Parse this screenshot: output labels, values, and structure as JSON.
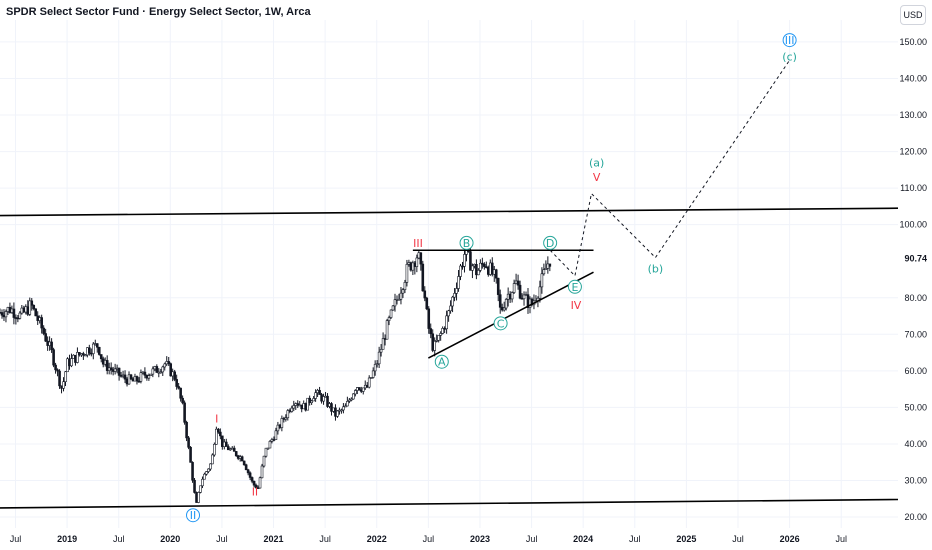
{
  "header": {
    "title": "SPDR Select Sector Fund · Energy Select Sector, 1W, Arca",
    "currency": "USD"
  },
  "chart_data": {
    "type": "candlestick",
    "title": "SPDR Select Sector Fund · Energy Select Sector, 1W, Arca",
    "y_axis_ticks": [
      20,
      30,
      40,
      50,
      60,
      70,
      80,
      90.74,
      100,
      110,
      120,
      130,
      140,
      150
    ],
    "y_axis_labels": [
      "20.00",
      "30.00",
      "40.00",
      "50.00",
      "60.00",
      "70.00",
      "80.00",
      "90.74",
      "100.00",
      "110.00",
      "120.00",
      "130.00",
      "140.00",
      "150.00"
    ],
    "current_price": "90.74",
    "x_axis_labels": [
      "Jul",
      "2019",
      "Jul",
      "2020",
      "Jul",
      "2021",
      "Jul",
      "2022",
      "Jul",
      "2023",
      "Jul",
      "2024",
      "Jul",
      "2025",
      "Jul",
      "2026",
      "Jul"
    ],
    "x_axis_positions": [
      2018.5,
      2019,
      2019.5,
      2020,
      2020.5,
      2021,
      2021.5,
      2022,
      2022.5,
      2023,
      2023.5,
      2024,
      2024.5,
      2025,
      2025.5,
      2026,
      2026.5
    ],
    "ylim": [
      17,
      156
    ],
    "xlim": [
      2018.35,
      2027.05
    ],
    "price_path": [
      [
        2018.35,
        76
      ],
      [
        2018.45,
        77
      ],
      [
        2018.55,
        75
      ],
      [
        2018.65,
        78
      ],
      [
        2018.75,
        72
      ],
      [
        2018.85,
        65
      ],
      [
        2018.95,
        55
      ],
      [
        2019.0,
        62
      ],
      [
        2019.1,
        64
      ],
      [
        2019.2,
        66
      ],
      [
        2019.3,
        67
      ],
      [
        2019.35,
        62
      ],
      [
        2019.45,
        60
      ],
      [
        2019.55,
        58
      ],
      [
        2019.65,
        57
      ],
      [
        2019.75,
        59
      ],
      [
        2019.85,
        60
      ],
      [
        2019.95,
        62
      ],
      [
        2020.05,
        58
      ],
      [
        2020.12,
        50
      ],
      [
        2020.2,
        34
      ],
      [
        2020.25,
        23
      ],
      [
        2020.3,
        30
      ],
      [
        2020.4,
        35
      ],
      [
        2020.45,
        46
      ],
      [
        2020.5,
        40
      ],
      [
        2020.6,
        38
      ],
      [
        2020.7,
        36
      ],
      [
        2020.8,
        29
      ],
      [
        2020.85,
        28
      ],
      [
        2020.92,
        38
      ],
      [
        2021.0,
        42
      ],
      [
        2021.1,
        47
      ],
      [
        2021.2,
        52
      ],
      [
        2021.3,
        50
      ],
      [
        2021.4,
        54
      ],
      [
        2021.5,
        52
      ],
      [
        2021.6,
        48
      ],
      [
        2021.7,
        50
      ],
      [
        2021.8,
        56
      ],
      [
        2021.9,
        55
      ],
      [
        2022.0,
        62
      ],
      [
        2022.1,
        72
      ],
      [
        2022.2,
        80
      ],
      [
        2022.3,
        88
      ],
      [
        2022.4,
        92
      ],
      [
        2022.45,
        83
      ],
      [
        2022.5,
        72
      ],
      [
        2022.55,
        66
      ],
      [
        2022.62,
        70
      ],
      [
        2022.7,
        76
      ],
      [
        2022.78,
        85
      ],
      [
        2022.85,
        92
      ],
      [
        2022.9,
        90
      ],
      [
        2022.97,
        87
      ],
      [
        2023.05,
        90
      ],
      [
        2023.15,
        85
      ],
      [
        2023.2,
        76
      ],
      [
        2023.25,
        80
      ],
      [
        2023.35,
        84
      ],
      [
        2023.42,
        80
      ],
      [
        2023.5,
        78
      ],
      [
        2023.58,
        83
      ],
      [
        2023.65,
        89
      ],
      [
        2023.68,
        90.7
      ]
    ],
    "annotations": [
      {
        "label": "I",
        "x": 2020.45,
        "y": 47,
        "color": "#f23645",
        "style": "plain"
      },
      {
        "label": "II",
        "x": 2020.22,
        "y": 20.5,
        "color": "#2196f3",
        "style": "circled"
      },
      {
        "label": "II",
        "x": 2020.82,
        "y": 27,
        "color": "#f23645",
        "style": "plain"
      },
      {
        "label": "III",
        "x": 2022.4,
        "y": 95,
        "color": "#f23645",
        "style": "plain"
      },
      {
        "label": "A",
        "x": 2022.63,
        "y": 62.5,
        "color": "#26a69a",
        "style": "circled"
      },
      {
        "label": "B",
        "x": 2022.87,
        "y": 95,
        "color": "#26a69a",
        "style": "circled"
      },
      {
        "label": "C",
        "x": 2023.2,
        "y": 73,
        "color": "#26a69a",
        "style": "circled"
      },
      {
        "label": "D",
        "x": 2023.68,
        "y": 95,
        "color": "#26a69a",
        "style": "circled"
      },
      {
        "label": "E",
        "x": 2023.92,
        "y": 83,
        "color": "#26a69a",
        "style": "circled"
      },
      {
        "label": "IV",
        "x": 2023.93,
        "y": 78,
        "color": "#f23645",
        "style": "plain"
      },
      {
        "label": "(a)",
        "x": 2024.13,
        "y": 117,
        "color": "#26a69a",
        "style": "plain"
      },
      {
        "label": "V",
        "x": 2024.13,
        "y": 113,
        "color": "#f23645",
        "style": "plain"
      },
      {
        "label": "(b)",
        "x": 2024.7,
        "y": 88,
        "color": "#26a69a",
        "style": "plain"
      },
      {
        "label": "III",
        "x": 2026.0,
        "y": 150.5,
        "color": "#2196f3",
        "style": "circled"
      },
      {
        "label": "(c)",
        "x": 2026.0,
        "y": 146,
        "color": "#26a69a",
        "style": "plain"
      }
    ],
    "trendlines": [
      {
        "x1": 2018.35,
        "y1": 102.5,
        "x2": 2027.05,
        "y2": 104.5,
        "style": "solid"
      },
      {
        "x1": 2018.35,
        "y1": 22.5,
        "x2": 2027.05,
        "y2": 24.8,
        "style": "solid"
      },
      {
        "x1": 2022.35,
        "y1": 93,
        "x2": 2024.1,
        "y2": 93,
        "style": "solid"
      },
      {
        "x1": 2022.5,
        "y1": 63.5,
        "x2": 2024.1,
        "y2": 87,
        "style": "solid"
      }
    ],
    "projection": [
      [
        2023.68,
        93
      ],
      [
        2023.92,
        86
      ],
      [
        2024.08,
        108.5
      ],
      [
        2024.7,
        91
      ],
      [
        2026.0,
        145
      ]
    ]
  }
}
